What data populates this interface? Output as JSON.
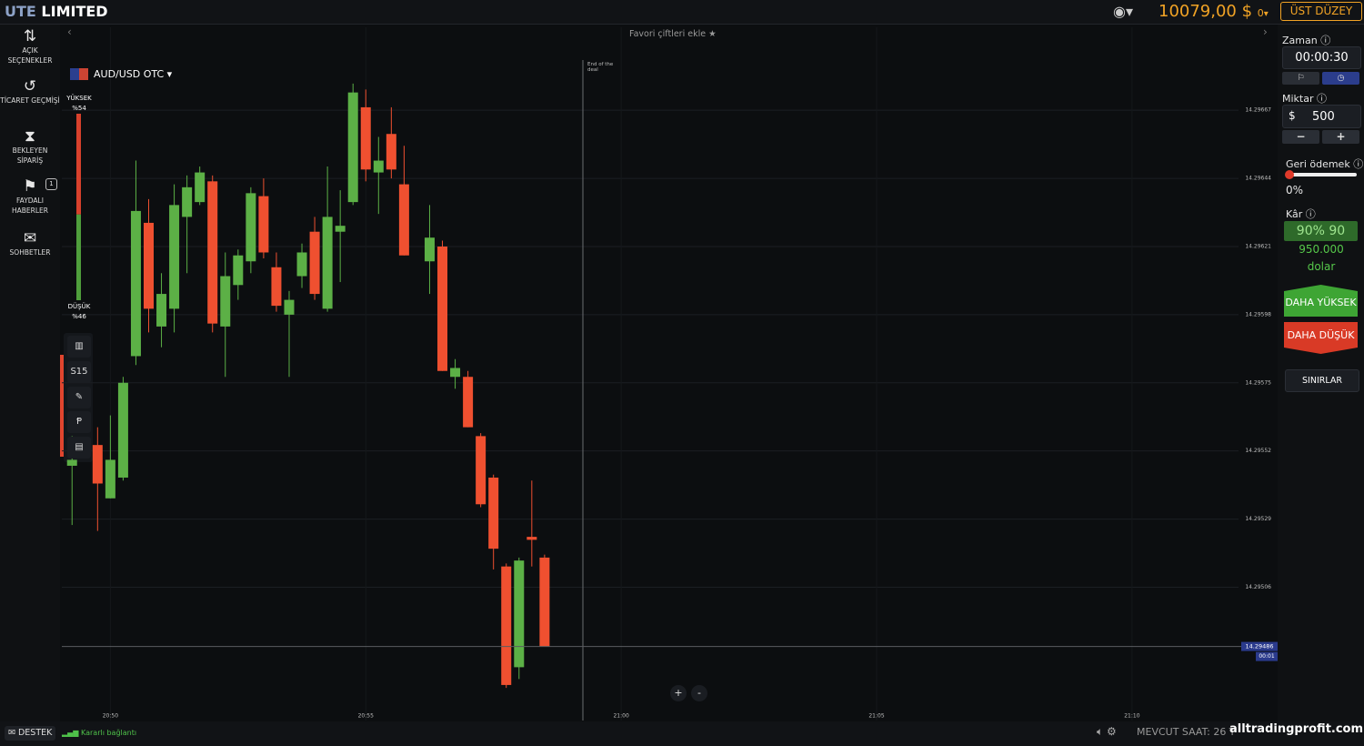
{
  "header": {
    "logo_prefix": "UTE",
    "logo_suffix": "LIMITED",
    "balance": "10079,00 $",
    "balance_extra": "0",
    "account_button": "ÜST DÜZEY"
  },
  "sidebar": {
    "items": [
      {
        "label": "AÇIK SEÇENEKLER"
      },
      {
        "label": "TİCARET GEÇMİŞİ"
      },
      {
        "label": "BEKLEYEN SİPARİŞ"
      },
      {
        "label": "FAYDALI HABERLER",
        "badge": "1"
      },
      {
        "label": "SOHBETLER"
      }
    ]
  },
  "toolbar": {
    "favorites": "Favori çiftleri ekle",
    "asset": "AUD/USD OTC",
    "timeframe": "S15",
    "zoom_in": "+",
    "zoom_out": "-"
  },
  "sentiment": {
    "high": {
      "name": "YÜKSEK",
      "value": 54,
      "value_label": "%54",
      "color": "#d8412c"
    },
    "low": {
      "name": "DÜŞÜK",
      "value": 46,
      "value_label": "%46",
      "color": "#4f9e3c"
    }
  },
  "trade_panel": {
    "time_label": "Zaman",
    "time": "00:00:30",
    "amount_label": "Miktar",
    "currency": "$",
    "amount": "500",
    "payout_label": "Geri ödemek",
    "payout": "0%",
    "profit_label": "Kâr",
    "profit_rate": "90% 90",
    "profit_amount": "950.000",
    "profit_unit": "dolar",
    "higher": "DAHA YÜKSEK",
    "lower": "DAHA DÜŞÜK",
    "limits": "SINIRLAR"
  },
  "footer": {
    "support": "DESTEK",
    "connection": "Kararlı bağlantı",
    "clock": "MEVCUT SAAT: 26 T",
    "watermark": "alltradingprofit.com"
  },
  "chart_data": {
    "type": "candlestick",
    "x": [
      1249.25,
      1249.75,
      1250,
      1250.25,
      1250.5,
      1250.75,
      1251,
      1251.25,
      1251.5,
      1251.75,
      1252,
      1252.25,
      1252.5,
      1252.75,
      1253,
      1253.25,
      1253.5,
      1253.75,
      1254,
      1254.25,
      1254.5,
      1254.75,
      1255,
      1255.25,
      1255.5,
      1255.75,
      1256.25,
      1256.5,
      1256.75,
      1257,
      1257.25,
      1257.5,
      1257.75,
      1258,
      1258.25,
      1258.5
    ],
    "open": [
      14.29547,
      14.29554,
      14.29536,
      14.29543,
      14.29584,
      14.29629,
      14.29594,
      14.296,
      14.29631,
      14.29636,
      14.29643,
      14.29594,
      14.29608,
      14.29616,
      14.29638,
      14.29614,
      14.29598,
      14.29611,
      14.29626,
      14.296,
      14.29626,
      14.29636,
      14.29668,
      14.29646,
      14.29659,
      14.29642,
      14.29616,
      14.29621,
      14.29577,
      14.29577,
      14.29557,
      14.29543,
      14.29513,
      14.29479,
      14.29523,
      14.29516
    ],
    "high": [
      14.29557,
      14.2956,
      14.29564,
      14.29577,
      14.2965,
      14.29637,
      14.29612,
      14.29642,
      14.29645,
      14.29648,
      14.29645,
      14.29619,
      14.2962,
      14.29641,
      14.29644,
      14.29619,
      14.29606,
      14.29622,
      14.29631,
      14.29648,
      14.2964,
      14.29676,
      14.29674,
      14.29658,
      14.29668,
      14.29655,
      14.29635,
      14.29623,
      14.29583,
      14.29579,
      14.29558,
      14.29544,
      14.29514,
      14.29516,
      14.29542,
      14.29517
    ],
    "low": [
      14.29527,
      14.29525,
      14.29536,
      14.29542,
      14.29581,
      14.29592,
      14.29587,
      14.29592,
      14.29612,
      14.29635,
      14.29592,
      14.29577,
      14.29603,
      14.29612,
      14.29617,
      14.29599,
      14.29577,
      14.29607,
      14.29603,
      14.29599,
      14.29609,
      14.29635,
      14.29643,
      14.29632,
      14.29644,
      14.29618,
      14.29605,
      14.29579,
      14.29573,
      14.2956,
      14.29533,
      14.29512,
      14.29472,
      14.29475,
      14.29513,
      14.29486
    ],
    "close": [
      14.29549,
      14.29541,
      14.29549,
      14.29575,
      14.29633,
      14.296,
      14.29605,
      14.29635,
      14.29641,
      14.29646,
      14.29595,
      14.29611,
      14.29618,
      14.29639,
      14.29619,
      14.29601,
      14.29603,
      14.29619,
      14.29605,
      14.29631,
      14.29628,
      14.29673,
      14.29647,
      14.2965,
      14.29647,
      14.29618,
      14.29624,
      14.29579,
      14.2958,
      14.2956,
      14.29534,
      14.29519,
      14.29473,
      14.29515,
      14.29522,
      14.29486
    ],
    "up_color": "#5cb046",
    "down_color": "#ef5030",
    "xlim": [
      1249.05,
      1272.85
    ],
    "xticks": [
      {
        "value": 1250,
        "label": "20:50"
      },
      {
        "value": 1255,
        "label": "20:55"
      },
      {
        "value": 1260,
        "label": "21:00"
      },
      {
        "value": 1265,
        "label": "21:05"
      },
      {
        "value": 1270,
        "label": "21:10"
      }
    ],
    "ylim": [
      14.29461,
      14.29695
    ],
    "yticks": [
      14.29506,
      14.29529,
      14.29552,
      14.29575,
      14.29598,
      14.29621,
      14.29644,
      14.29667
    ],
    "grid": true,
    "current_price": 14.29486,
    "countdown": "00:01",
    "deal_end": {
      "x": 1259.25,
      "label": "End of the deal"
    }
  }
}
